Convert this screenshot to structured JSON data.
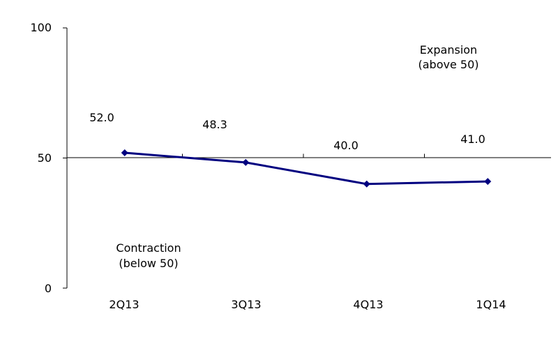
{
  "chart_data": {
    "type": "line",
    "categories": [
      "2Q13",
      "3Q13",
      "4Q13",
      "1Q14"
    ],
    "series": [
      {
        "values": [
          52.0,
          48.3,
          40.0,
          41.0
        ],
        "data_labels": [
          "52.0",
          "48.3",
          "40.0",
          "41.0"
        ]
      }
    ],
    "ylim": [
      0,
      100
    ],
    "yticks": [
      0,
      50,
      100
    ],
    "ytick_labels": [
      "0",
      "50",
      "100"
    ],
    "reference_line": 50,
    "grid": false,
    "annotations": {
      "expansion": [
        "Expansion",
        "(above 50)"
      ],
      "contraction": [
        "Contraction",
        "(below 50)"
      ]
    },
    "colors": {
      "series": "#000080",
      "axis": "#000000"
    }
  }
}
